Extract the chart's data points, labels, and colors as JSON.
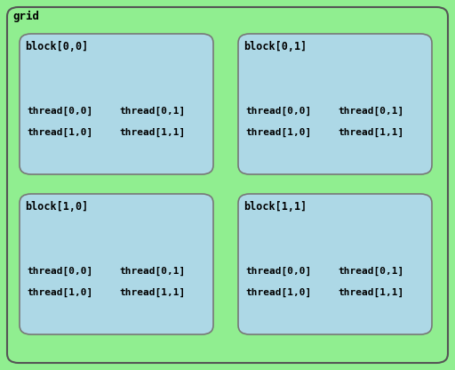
{
  "grid_bg": "#90EE90",
  "block_bg": "#ADD8E6",
  "grid_label": "grid",
  "grid_edge_color": "#555555",
  "block_edge_color": "#777777",
  "blocks": [
    {
      "label": "block[0,0]",
      "row": 0,
      "col": 0
    },
    {
      "label": "block[0,1]",
      "row": 0,
      "col": 1
    },
    {
      "label": "block[1,0]",
      "row": 1,
      "col": 0
    },
    {
      "label": "block[1,1]",
      "row": 1,
      "col": 1
    }
  ],
  "threads": [
    [
      "thread[0,0]",
      "thread[0,1]"
    ],
    [
      "thread[1,0]",
      "thread[1,1]"
    ]
  ],
  "fig_w": 5.12,
  "fig_h": 4.16,
  "dpi": 100,
  "font_size_block": 8.5,
  "font_size_thread": 8.0,
  "font_size_grid": 9.0,
  "font_weight": "bold"
}
